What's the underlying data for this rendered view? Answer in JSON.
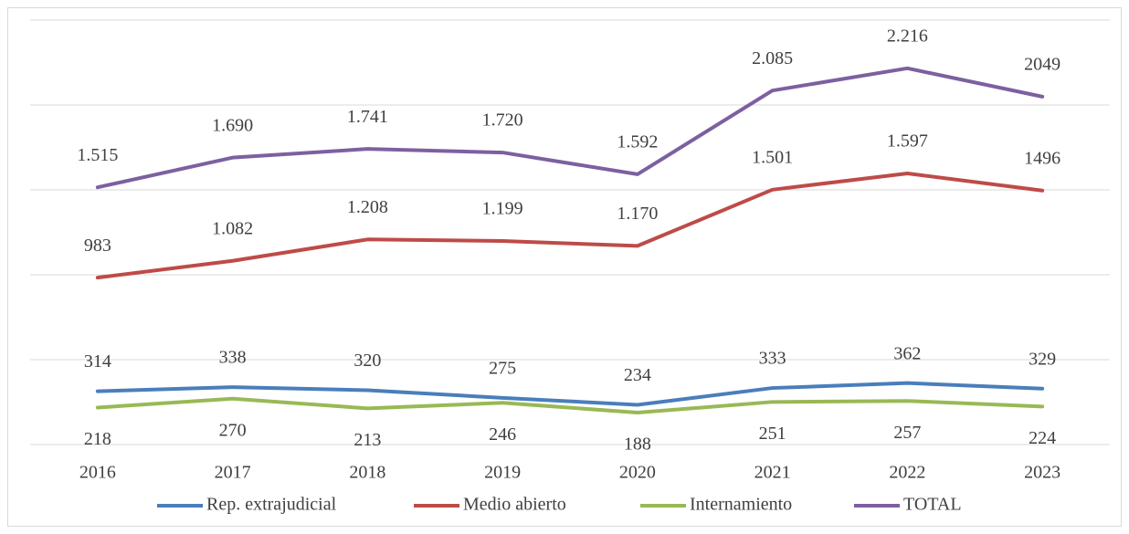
{
  "chart_data": {
    "type": "line",
    "categories": [
      "2016",
      "2017",
      "2018",
      "2019",
      "2020",
      "2021",
      "2022",
      "2023"
    ],
    "series": [
      {
        "name": "Rep. extrajudicial",
        "color": "#4a7ebb",
        "values": [
          314,
          338,
          320,
          275,
          234,
          333,
          362,
          329
        ]
      },
      {
        "name": "Medio abierto",
        "color": "#be4b48",
        "values": [
          983,
          1082,
          1208,
          1199,
          1170,
          1501,
          1597,
          1496
        ],
        "value_labels": [
          "983",
          "1.082",
          "1.208",
          "1.199",
          "1.170",
          "1.501",
          "1.597",
          "1496"
        ]
      },
      {
        "name": "Internamiento",
        "color": "#98b954",
        "values": [
          218,
          270,
          213,
          246,
          188,
          251,
          257,
          224
        ]
      },
      {
        "name": "TOTAL",
        "color": "#7d60a0",
        "values": [
          1515,
          1690,
          1741,
          1720,
          1592,
          2085,
          2216,
          2049
        ],
        "value_labels": [
          "1.515",
          "1.690",
          "1.741",
          "1.720",
          "1.592",
          "2.085",
          "2.216",
          "2049"
        ]
      }
    ],
    "ylim": [
      0,
      2500
    ],
    "yticks": [
      0,
      500,
      1000,
      1500,
      2000,
      2500
    ],
    "grid": true,
    "legend": "bottom"
  }
}
